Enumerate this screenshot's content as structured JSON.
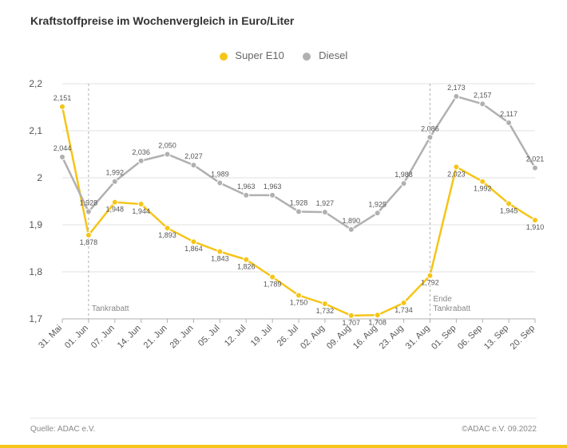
{
  "title": "Kraftstoffpreise im Wochenvergleich in Euro/Liter",
  "source_label": "Quelle: ADAC e.V.",
  "copyright": "©ADAC e.V.  09.2022",
  "legend": {
    "series1": {
      "label": "Super E10",
      "color": "#f5c518"
    },
    "series2": {
      "label": "Diesel",
      "color": "#b0b0b0"
    }
  },
  "chart": {
    "type": "line",
    "background_color": "#ffffff",
    "grid_color": "#e0e0e0",
    "axis_color": "#b0b0b0",
    "ylim": [
      1.7,
      2.2
    ],
    "ytick_step": 0.1,
    "yticks": [
      "1,7",
      "1,8",
      "1,9",
      "2",
      "2,1",
      "2,2"
    ],
    "line_width": 2.5,
    "marker_radius": 3.5,
    "categories": [
      "31. Mai",
      "01. Jun",
      "07. Jun",
      "14. Jun",
      "21. Jun",
      "28. Jun",
      "05. Jul",
      "12. Jul",
      "19. Jul",
      "26. Jul",
      "02. Aug",
      "09. Aug",
      "16. Aug",
      "23. Aug",
      "31. Aug",
      "01. Sep",
      "06. Sep",
      "13. Sep",
      "20. Sep"
    ],
    "series": [
      {
        "name": "Super E10",
        "color": "#f5c518",
        "values": [
          2.151,
          1.878,
          1.948,
          1.944,
          1.893,
          1.864,
          1.843,
          1.826,
          1.789,
          1.75,
          1.732,
          1.707,
          1.708,
          1.734,
          1.792,
          2.023,
          1.992,
          1.945,
          1.91
        ],
        "labels": [
          "2,151",
          "1,878",
          "1,948",
          "1,944",
          "1,893",
          "1,864",
          "1,843",
          "1,826",
          "1,789",
          "1,750",
          "1,732",
          "1,707",
          "1,708",
          "1,734",
          "1,792",
          "2,023",
          "1,992",
          "1,945",
          "1,910"
        ]
      },
      {
        "name": "Diesel",
        "color": "#b0b0b0",
        "values": [
          2.044,
          1.928,
          1.992,
          2.036,
          2.05,
          2.027,
          1.989,
          1.963,
          1.963,
          1.928,
          1.927,
          1.89,
          1.925,
          1.988,
          2.086,
          2.173,
          2.157,
          2.117,
          2.021
        ],
        "labels": [
          "2,044",
          "1,928",
          "1,992",
          "2,036",
          "2,050",
          "2,027",
          "1,989",
          "1,963",
          "1,963",
          "1,928",
          "1,927",
          "1,890",
          "1,925",
          "1,988",
          "2,086",
          "2,173",
          "2,157",
          "2,117",
          "2,021"
        ]
      }
    ],
    "annotations": [
      {
        "at_index": 1,
        "text": "Tankrabatt"
      },
      {
        "at_index": 14,
        "text": "Ende\nTankrabatt"
      }
    ],
    "vline_color": "#b0b0b0",
    "label_fontsize": 9,
    "axis_fontsize": 12
  }
}
